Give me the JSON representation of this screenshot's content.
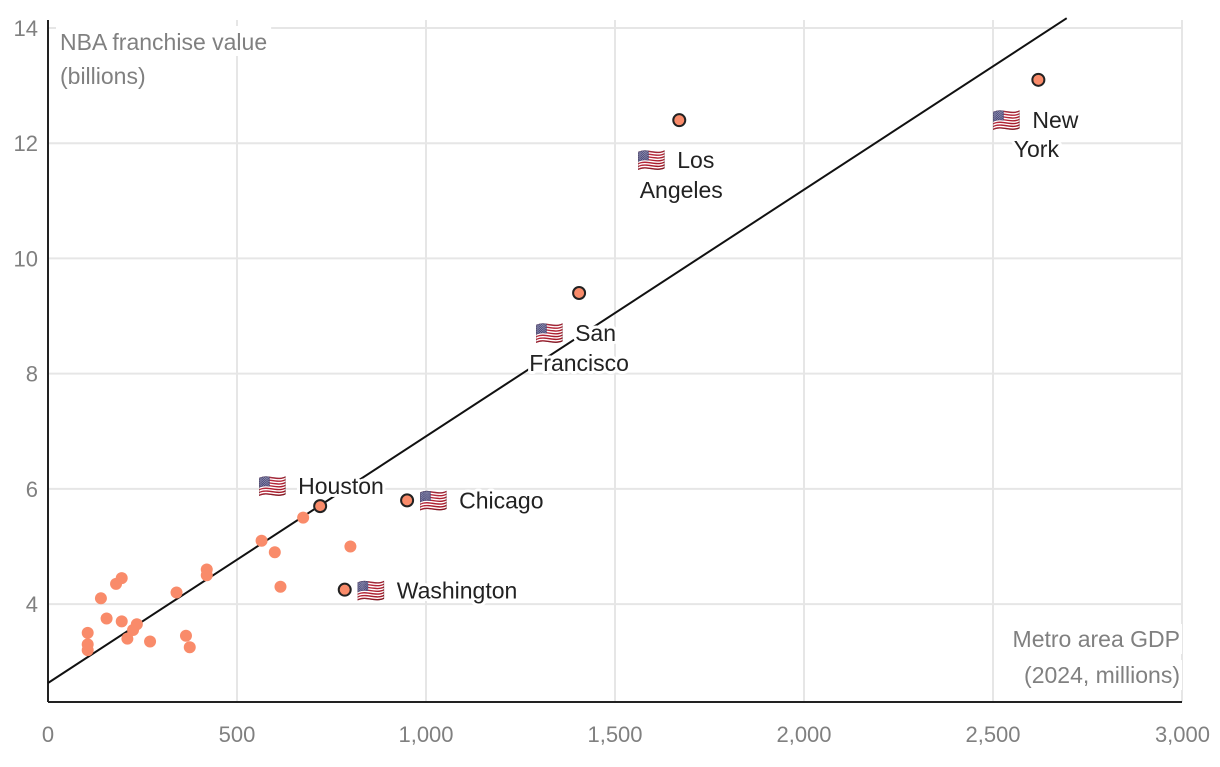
{
  "chart_data": {
    "type": "scatter",
    "title": "",
    "xlabel": [
      "Metro area GDP",
      "(2024, millions)"
    ],
    "ylabel": [
      "NBA franchise value",
      "(billions)"
    ],
    "xlim": [
      0,
      3000
    ],
    "ylim": [
      2.3,
      14
    ],
    "x_ticks": [
      0,
      500,
      1000,
      1500,
      2000,
      2500,
      3000
    ],
    "x_tick_labels": [
      "0",
      "500",
      "1,000",
      "1,500",
      "2,000",
      "2,500",
      "3,000"
    ],
    "y_ticks": [
      4,
      6,
      8,
      10,
      12,
      14
    ],
    "y_tick_labels": [
      "4",
      "6",
      "8",
      "10",
      "12",
      "14"
    ],
    "grid": true,
    "trend_line": {
      "x": [
        0,
        2695
      ],
      "y": [
        2.63,
        14.17
      ]
    },
    "colors": {
      "point": "#f98b6a",
      "highlight_point": "#f98b6a",
      "highlight_stroke": "#222222",
      "grid": "#e6e6e6",
      "axis": "#222222",
      "trend": "#111111"
    },
    "labeled_points": [
      {
        "name": "New York",
        "lines": [
          "New",
          "York"
        ],
        "flag": "🇺🇸",
        "x": 2620,
        "y": 13.1
      },
      {
        "name": "Los Angeles",
        "lines": [
          "Los",
          "Angeles"
        ],
        "flag": "🇺🇸",
        "x": 1670,
        "y": 12.4
      },
      {
        "name": "San Francisco",
        "lines": [
          "San",
          "Francisco"
        ],
        "flag": "🇺🇸",
        "x": 1405,
        "y": 9.4
      },
      {
        "name": "Houston",
        "lines": [
          "Houston"
        ],
        "flag": "🇺🇸",
        "x": 720,
        "y": 5.7
      },
      {
        "name": "Chicago",
        "lines": [
          "Chicago"
        ],
        "flag": "🇺🇸",
        "x": 950,
        "y": 5.8
      },
      {
        "name": "Washington",
        "lines": [
          "Washington"
        ],
        "flag": "🇺🇸",
        "x": 785,
        "y": 4.25
      }
    ],
    "points": [
      {
        "x": 105,
        "y": 3.5
      },
      {
        "x": 105,
        "y": 3.3
      },
      {
        "x": 105,
        "y": 3.2
      },
      {
        "x": 140,
        "y": 4.1
      },
      {
        "x": 155,
        "y": 3.75
      },
      {
        "x": 180,
        "y": 4.35
      },
      {
        "x": 195,
        "y": 4.45
      },
      {
        "x": 195,
        "y": 3.7
      },
      {
        "x": 210,
        "y": 3.4
      },
      {
        "x": 225,
        "y": 3.55
      },
      {
        "x": 235,
        "y": 3.65
      },
      {
        "x": 270,
        "y": 3.35
      },
      {
        "x": 340,
        "y": 4.2
      },
      {
        "x": 365,
        "y": 3.45
      },
      {
        "x": 375,
        "y": 3.25
      },
      {
        "x": 420,
        "y": 4.5
      },
      {
        "x": 420,
        "y": 4.6
      },
      {
        "x": 565,
        "y": 5.1
      },
      {
        "x": 600,
        "y": 4.9
      },
      {
        "x": 615,
        "y": 4.3
      },
      {
        "x": 675,
        "y": 5.5
      },
      {
        "x": 800,
        "y": 5.0
      }
    ]
  }
}
